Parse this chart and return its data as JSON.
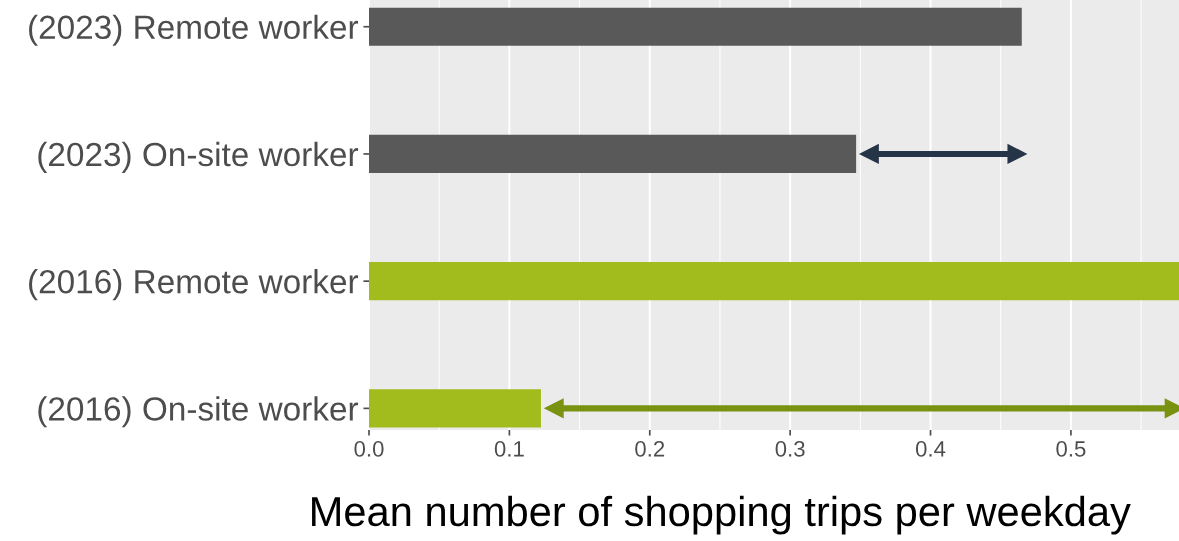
{
  "chart_data": {
    "type": "bar",
    "orientation": "horizontal",
    "categories": [
      "(2023) Remote worker",
      "(2023) On-site worker",
      "(2016) Remote worker",
      "(2016) On-site worker"
    ],
    "values": [
      0.465,
      0.347,
      0.577,
      0.1225
    ],
    "colors": [
      "#595959",
      "#595959",
      "#a2bc1e",
      "#a2bc1e"
    ],
    "xlabel": "Mean number of shopping trips per weekday",
    "xlim": [
      0,
      0.577
    ],
    "xticks": [
      {
        "value": 0,
        "label": "0.0"
      },
      0.1,
      0.2,
      0.3,
      0.4,
      0.5
    ],
    "grid": "x"
  }
}
